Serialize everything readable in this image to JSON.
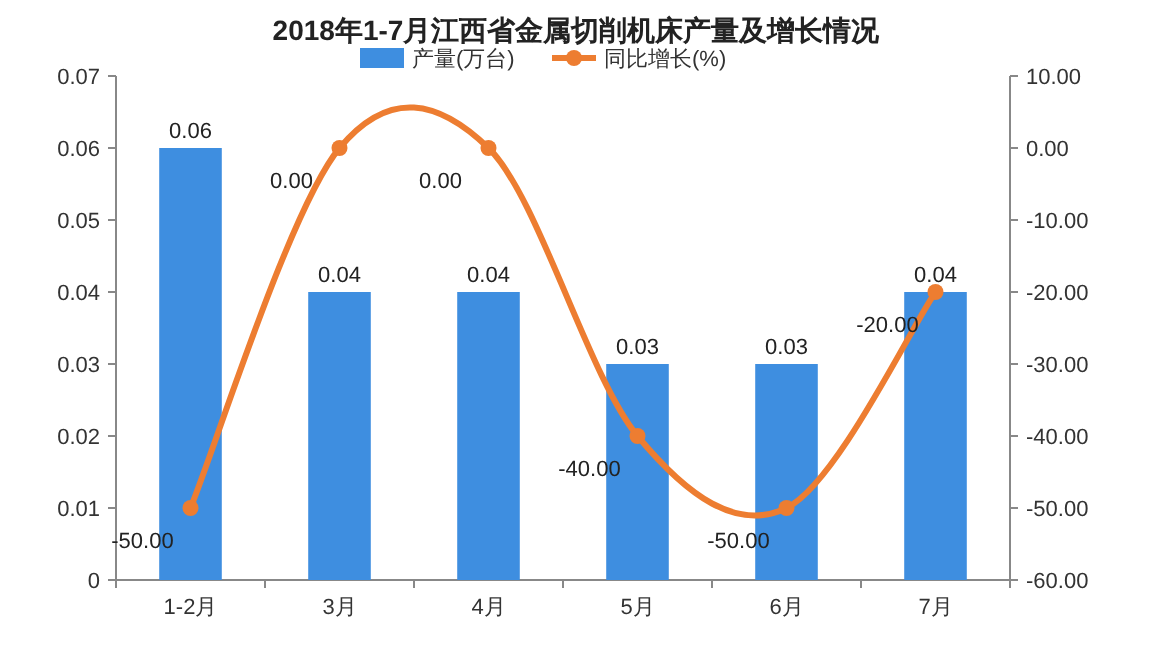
{
  "chart_data": {
    "type": "bar",
    "title": "2018年1-7月江西省金属切削机床产量及增长情况",
    "categories": [
      "1-2月",
      "3月",
      "4月",
      "5月",
      "6月",
      "7月"
    ],
    "series": [
      {
        "name": "产量(万台)",
        "color": "#3e8ee0",
        "values": [
          0.06,
          0.04,
          0.04,
          0.03,
          0.03,
          0.04
        ],
        "value_labels": [
          "0.06",
          "0.04",
          "0.04",
          "0.03",
          "0.03",
          "0.04"
        ]
      },
      {
        "name": "同比增长(%)",
        "type": "line",
        "axis": "y2",
        "color": "#ed7d31",
        "values": [
          -50,
          0,
          0,
          -40,
          -50,
          -20
        ],
        "value_labels": [
          "-50.00",
          "0.00",
          "0.00",
          "-40.00",
          "-50.00",
          "-20.00"
        ]
      }
    ],
    "ylim": [
      0,
      0.07
    ],
    "yticks": [
      0,
      0.01,
      0.02,
      0.03,
      0.04,
      0.05,
      0.06,
      0.07
    ],
    "y2lim": [
      -60,
      10
    ],
    "y2ticks": [
      {
        "value": 10,
        "label": "10.00"
      },
      {
        "value": 0,
        "label": "0.00"
      },
      {
        "value": -10,
        "label": "-10.00"
      },
      {
        "value": -20,
        "label": "-20.00"
      },
      {
        "value": -30,
        "label": "-30.00"
      },
      {
        "value": -40,
        "label": "-40.00"
      },
      {
        "value": -50,
        "label": "-50.00"
      },
      {
        "value": -60,
        "label": "-60.00"
      }
    ],
    "legend": "top",
    "marker": "circle"
  }
}
